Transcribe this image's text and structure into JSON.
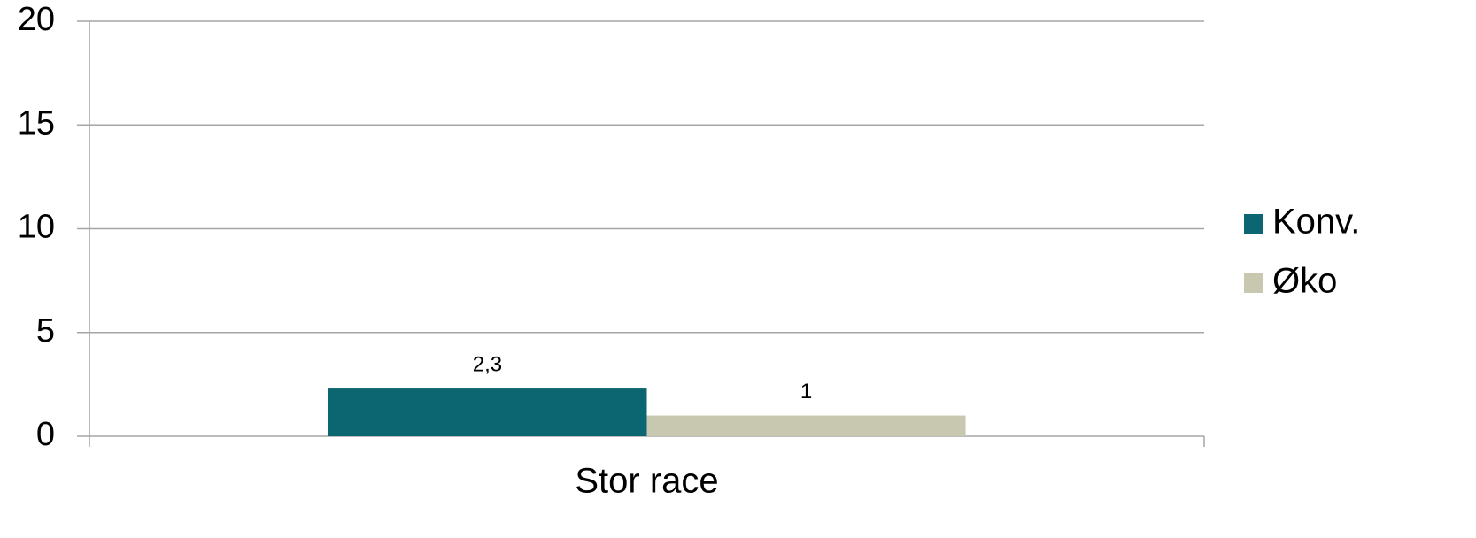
{
  "chart_data": {
    "type": "bar",
    "categories": [
      "Stor race"
    ],
    "series": [
      {
        "name": "Konv.",
        "color": "#0b6672",
        "values": [
          2.3
        ],
        "value_labels": [
          "2,3"
        ]
      },
      {
        "name": "Øko",
        "color": "#c8c8b0",
        "values": [
          1
        ]
      }
    ],
    "ylim": [
      0,
      20
    ],
    "yticks": [
      0,
      5,
      10,
      15,
      20
    ],
    "grid": true,
    "legend": "right"
  }
}
